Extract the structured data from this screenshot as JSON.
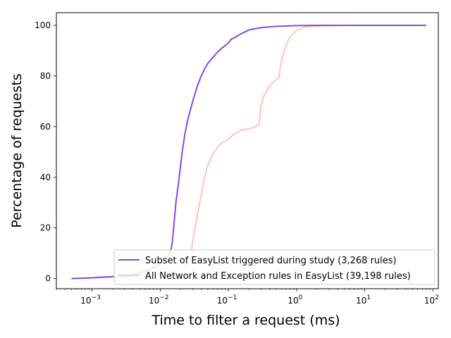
{
  "chart_data": {
    "type": "line",
    "xlabel": "Time to filter a request (ms)",
    "ylabel": "Percentage of requests",
    "xscale": "log",
    "xlim": [
      0.0003,
      120
    ],
    "ylim": [
      -4,
      105
    ],
    "x_ticks": [
      0.001,
      0.01,
      0.1,
      1,
      10,
      100
    ],
    "x_tick_labels": [
      {
        "base": "10",
        "exp": "−3"
      },
      {
        "base": "10",
        "exp": "−2"
      },
      {
        "base": "10",
        "exp": "−1"
      },
      {
        "base": "10",
        "exp": "0"
      },
      {
        "base": "10",
        "exp": "1"
      },
      {
        "base": "10",
        "exp": "2"
      }
    ],
    "y_ticks": [
      0,
      20,
      40,
      60,
      80,
      100
    ],
    "y_tick_labels": [
      "0",
      "20",
      "40",
      "60",
      "80",
      "100"
    ],
    "grid": false,
    "legend_position": "lower-right",
    "series": [
      {
        "name": "Subset of EasyList triggered during study (3,268 rules)",
        "color": "#7b4fe6",
        "points": [
          [
            0.0005,
            0
          ],
          [
            0.001,
            0.3
          ],
          [
            0.002,
            0.8
          ],
          [
            0.004,
            1.5
          ],
          [
            0.006,
            3
          ],
          [
            0.009,
            5
          ],
          [
            0.012,
            8
          ],
          [
            0.014,
            10
          ],
          [
            0.015,
            14
          ],
          [
            0.016,
            22
          ],
          [
            0.017,
            30
          ],
          [
            0.019,
            40
          ],
          [
            0.021,
            50
          ],
          [
            0.023,
            57
          ],
          [
            0.025,
            62
          ],
          [
            0.03,
            70
          ],
          [
            0.035,
            76
          ],
          [
            0.04,
            80
          ],
          [
            0.045,
            83
          ],
          [
            0.05,
            85
          ],
          [
            0.06,
            87.5
          ],
          [
            0.07,
            89.5
          ],
          [
            0.08,
            91
          ],
          [
            0.09,
            92
          ],
          [
            0.1,
            93
          ],
          [
            0.11,
            94.5
          ],
          [
            0.13,
            95.5
          ],
          [
            0.15,
            96.5
          ],
          [
            0.2,
            98.2
          ],
          [
            0.3,
            99.1
          ],
          [
            0.5,
            99.6
          ],
          [
            1,
            99.9
          ],
          [
            2,
            100
          ],
          [
            10,
            100
          ],
          [
            80,
            100
          ]
        ]
      },
      {
        "name": "All Network and Exception rules in EasyList (39,198 rules)",
        "color": "#ffc5b5",
        "points": [
          [
            0.0005,
            0
          ],
          [
            0.001,
            0.3
          ],
          [
            0.002,
            0.6
          ],
          [
            0.004,
            1
          ],
          [
            0.008,
            2
          ],
          [
            0.015,
            3
          ],
          [
            0.02,
            4
          ],
          [
            0.024,
            5
          ],
          [
            0.028,
            8
          ],
          [
            0.03,
            15
          ],
          [
            0.035,
            25
          ],
          [
            0.04,
            33
          ],
          [
            0.045,
            40
          ],
          [
            0.05,
            45
          ],
          [
            0.06,
            49.5
          ],
          [
            0.07,
            52
          ],
          [
            0.08,
            53.5
          ],
          [
            0.1,
            55
          ],
          [
            0.12,
            57
          ],
          [
            0.15,
            58.5
          ],
          [
            0.2,
            59.2
          ],
          [
            0.25,
            60
          ],
          [
            0.28,
            61
          ],
          [
            0.3,
            68
          ],
          [
            0.33,
            72
          ],
          [
            0.4,
            76
          ],
          [
            0.5,
            78.5
          ],
          [
            0.55,
            79.5
          ],
          [
            0.6,
            86
          ],
          [
            0.7,
            92
          ],
          [
            0.8,
            95.5
          ],
          [
            1,
            98
          ],
          [
            1.3,
            99.3
          ],
          [
            2,
            99.8
          ],
          [
            5,
            100
          ],
          [
            80,
            100
          ]
        ]
      }
    ]
  }
}
